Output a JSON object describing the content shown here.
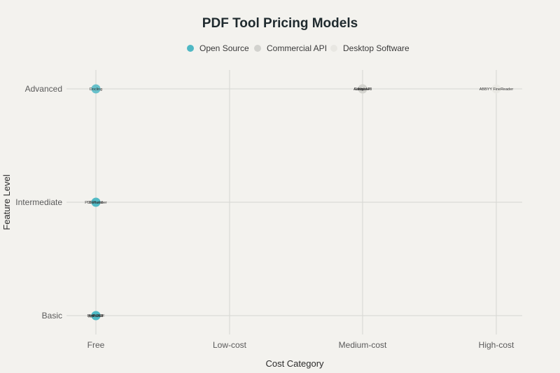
{
  "chart_data": {
    "type": "scatter",
    "title": "PDF Tool Pricing Models",
    "xlabel": "Cost Category",
    "ylabel": "Feature Level",
    "x_categories": [
      "Free",
      "Low-cost",
      "Medium-cost",
      "High-cost"
    ],
    "y_categories": [
      "Basic",
      "Intermediate",
      "Advanced"
    ],
    "grid": true,
    "legend_position": "top",
    "series": [
      {
        "name": "Open Source",
        "color": "#4fb8c4",
        "points": [
          {
            "x": "Free",
            "y": "Advanced",
            "label": "Docling"
          },
          {
            "x": "Free",
            "y": "Intermediate",
            "label": "PDFPlumber"
          },
          {
            "x": "Free",
            "y": "Intermediate",
            "label": "Camelot"
          },
          {
            "x": "Free",
            "y": "Basic",
            "label": "PyPDF2"
          },
          {
            "x": "Free",
            "y": "Basic",
            "label": "PyMuPDF"
          },
          {
            "x": "Free",
            "y": "Basic",
            "label": "pdfminer"
          }
        ]
      },
      {
        "name": "Commercial API",
        "color": "#d2d2ce",
        "points": [
          {
            "x": "Medium-cost",
            "y": "Advanced",
            "label": "Adobe API"
          },
          {
            "x": "Medium-cost",
            "y": "Advanced",
            "label": "Google AI"
          },
          {
            "x": "Medium-cost",
            "y": "Advanced",
            "label": "Azure"
          }
        ]
      },
      {
        "name": "Desktop Software",
        "color": "#e8e7e2",
        "points": [
          {
            "x": "High-cost",
            "y": "Advanced",
            "label": "ABBYY FineReader"
          }
        ]
      }
    ]
  }
}
